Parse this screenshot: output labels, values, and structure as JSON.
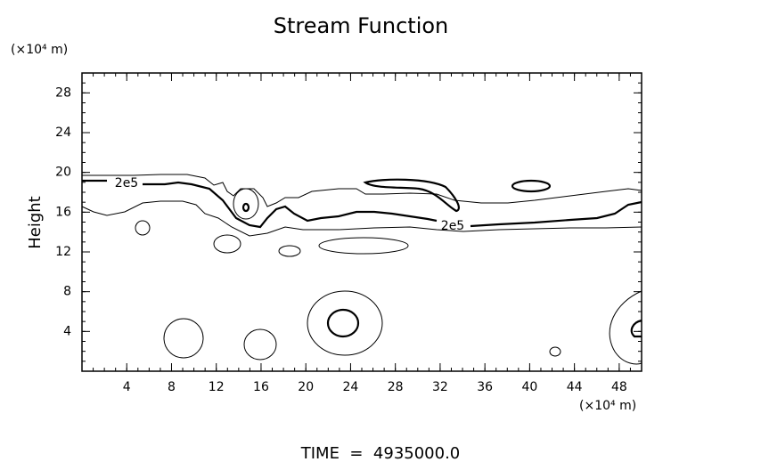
{
  "chart_data": {
    "type": "contour",
    "title": "Stream Function",
    "ylabel": "Height",
    "ylabel_units": "(×10⁴ m)",
    "xlabel_units": "(×10⁴ m)",
    "xlim": [
      0,
      50
    ],
    "xticks": [
      4,
      8,
      12,
      16,
      20,
      24,
      28,
      32,
      36,
      40,
      44,
      48
    ],
    "ylim": [
      0,
      30
    ],
    "yticks": [
      4,
      8,
      12,
      16,
      20,
      24,
      28
    ],
    "contour_labels": [
      "2e5",
      "2e5"
    ],
    "footer": "TIME  =  4935000.0"
  }
}
